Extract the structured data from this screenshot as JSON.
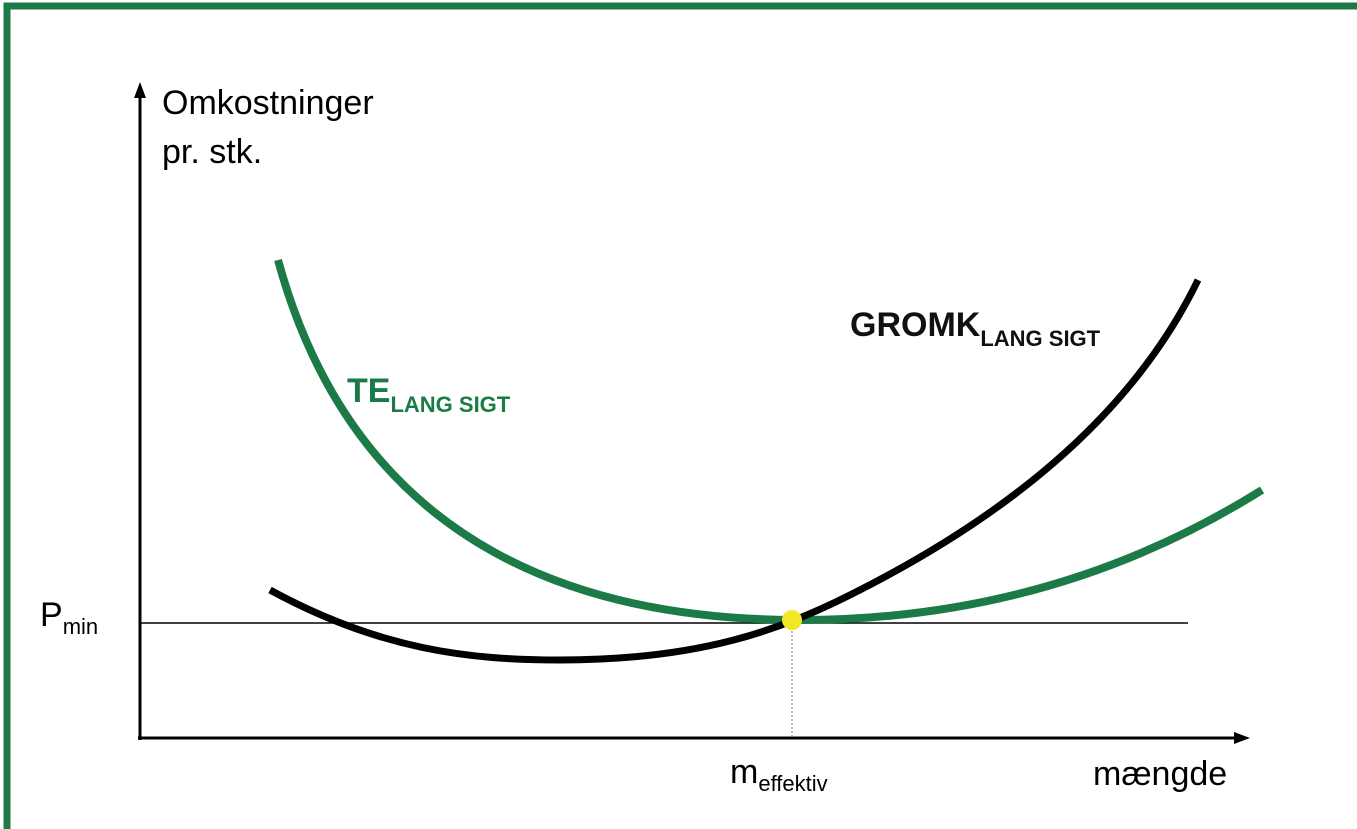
{
  "y_axis_label": [
    "Omkostninger",
    "pr. stk."
  ],
  "x_axis_label": "mængde",
  "p_min": {
    "main": "P",
    "sub": "min"
  },
  "m_effektiv": {
    "main": "m",
    "sub": "effektiv"
  },
  "curves": [
    {
      "name": "TE",
      "sub": "LANG SIGT"
    },
    {
      "name": "GROMK",
      "sub": "LANG SIGT"
    }
  ]
}
